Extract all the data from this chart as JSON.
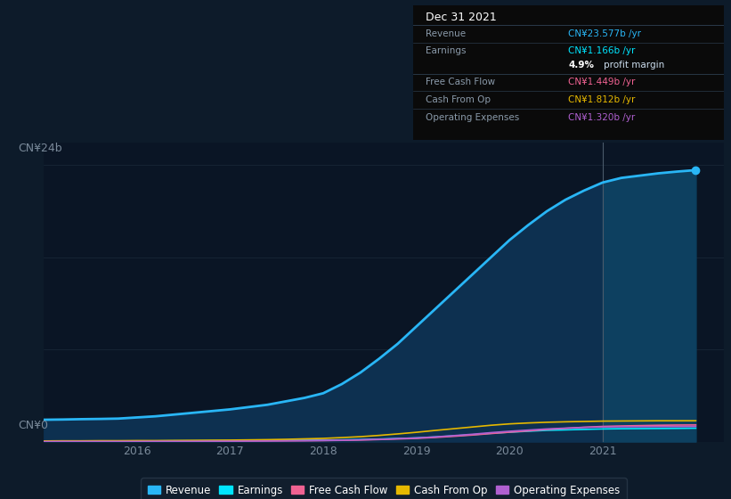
{
  "background_color": "#0d1b2a",
  "chart_area_color": "#0a1525",
  "grid_color": "#1a2a3a",
  "years": [
    2015.0,
    2015.2,
    2015.4,
    2015.6,
    2015.8,
    2016.0,
    2016.2,
    2016.4,
    2016.6,
    2016.8,
    2017.0,
    2017.2,
    2017.4,
    2017.6,
    2017.8,
    2018.0,
    2018.2,
    2018.4,
    2018.6,
    2018.8,
    2019.0,
    2019.2,
    2019.4,
    2019.6,
    2019.8,
    2020.0,
    2020.2,
    2020.4,
    2020.6,
    2020.8,
    2021.0,
    2021.2,
    2021.4,
    2021.6,
    2021.8,
    2022.0
  ],
  "revenue": [
    1.9,
    1.92,
    1.95,
    1.97,
    2.0,
    2.1,
    2.2,
    2.35,
    2.5,
    2.65,
    2.8,
    3.0,
    3.2,
    3.5,
    3.8,
    4.2,
    5.0,
    6.0,
    7.2,
    8.5,
    10.0,
    11.5,
    13.0,
    14.5,
    16.0,
    17.5,
    18.8,
    20.0,
    21.0,
    21.8,
    22.5,
    22.9,
    23.1,
    23.3,
    23.45,
    23.577
  ],
  "earnings": [
    0.04,
    0.04,
    0.05,
    0.05,
    0.05,
    0.06,
    0.06,
    0.07,
    0.07,
    0.08,
    0.08,
    0.09,
    0.1,
    0.11,
    0.12,
    0.13,
    0.15,
    0.18,
    0.22,
    0.27,
    0.32,
    0.4,
    0.5,
    0.6,
    0.72,
    0.82,
    0.9,
    0.98,
    1.02,
    1.06,
    1.1,
    1.12,
    1.13,
    1.14,
    1.15,
    1.166
  ],
  "free_cash_flow": [
    0.02,
    0.02,
    0.02,
    0.03,
    0.03,
    0.03,
    0.03,
    0.04,
    0.04,
    0.04,
    0.05,
    0.05,
    0.06,
    0.07,
    0.08,
    0.09,
    0.11,
    0.14,
    0.18,
    0.23,
    0.28,
    0.36,
    0.46,
    0.57,
    0.7,
    0.82,
    0.93,
    1.05,
    1.15,
    1.25,
    1.32,
    1.36,
    1.39,
    1.42,
    1.44,
    1.449
  ],
  "cash_from_op": [
    0.06,
    0.07,
    0.07,
    0.08,
    0.08,
    0.09,
    0.09,
    0.1,
    0.11,
    0.12,
    0.13,
    0.15,
    0.17,
    0.2,
    0.24,
    0.28,
    0.35,
    0.43,
    0.54,
    0.67,
    0.81,
    0.97,
    1.12,
    1.27,
    1.42,
    1.54,
    1.62,
    1.68,
    1.72,
    1.75,
    1.78,
    1.79,
    1.8,
    1.81,
    1.81,
    1.812
  ],
  "operating_expenses": [
    0.01,
    0.02,
    0.02,
    0.02,
    0.02,
    0.02,
    0.03,
    0.03,
    0.03,
    0.04,
    0.04,
    0.05,
    0.06,
    0.07,
    0.08,
    0.1,
    0.12,
    0.16,
    0.2,
    0.26,
    0.32,
    0.41,
    0.52,
    0.64,
    0.78,
    0.9,
    1.0,
    1.1,
    1.17,
    1.23,
    1.27,
    1.29,
    1.3,
    1.31,
    1.31,
    1.32
  ],
  "revenue_color": "#29b6f6",
  "earnings_color": "#00e5ff",
  "free_cash_flow_color": "#f06292",
  "cash_from_op_color": "#e6b800",
  "operating_expenses_color": "#b060d0",
  "fill_color_before": "#0d3050",
  "fill_color_after": "#0d4060",
  "x_ticks": [
    2016,
    2017,
    2018,
    2019,
    2020,
    2021
  ],
  "x_tick_labels": [
    "2016",
    "2017",
    "2018",
    "2019",
    "2020",
    "2021"
  ],
  "y_label_top": "CN¥24b",
  "y_label_bottom": "CN¥0",
  "ylim": [
    0,
    26
  ],
  "xlim": [
    2015.0,
    2022.3
  ],
  "vline_x": 2021.0,
  "vline_color": "#4a5a6a",
  "table_title": "Dec 31 2021",
  "table_rows": [
    {
      "label": "Revenue",
      "value": "CN¥23.577b /yr",
      "value_color": "#29b6f6"
    },
    {
      "label": "Earnings",
      "value": "CN¥1.166b /yr",
      "value_color": "#00e5ff"
    },
    {
      "label": "",
      "value": "4.9% profit margin",
      "value_color": "#ffffff"
    },
    {
      "label": "Free Cash Flow",
      "value": "CN¥1.449b /yr",
      "value_color": "#f06292"
    },
    {
      "label": "Cash From Op",
      "value": "CN¥1.812b /yr",
      "value_color": "#e6b800"
    },
    {
      "label": "Operating Expenses",
      "value": "CN¥1.320b /yr",
      "value_color": "#b060d0"
    }
  ],
  "legend_items": [
    {
      "label": "Revenue",
      "color": "#29b6f6"
    },
    {
      "label": "Earnings",
      "color": "#00e5ff"
    },
    {
      "label": "Free Cash Flow",
      "color": "#f06292"
    },
    {
      "label": "Cash From Op",
      "color": "#e6b800"
    },
    {
      "label": "Operating Expenses",
      "color": "#b060d0"
    }
  ]
}
